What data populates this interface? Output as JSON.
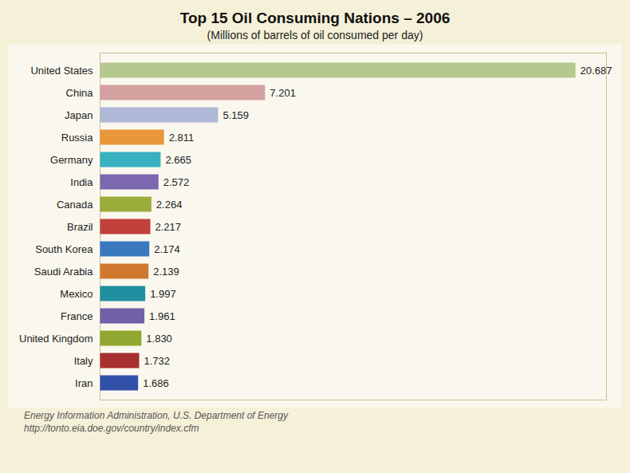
{
  "chart_data": {
    "type": "bar",
    "orientation": "horizontal",
    "title": "Top 15 Oil Consuming Nations – 2006",
    "subtitle": "(Millions of barrels of oil consumed per day)",
    "categories": [
      "United States",
      "China",
      "Japan",
      "Russia",
      "Germany",
      "India",
      "Canada",
      "Brazil",
      "South Korea",
      "Saudi Arabia",
      "Mexico",
      "France",
      "United Kingdom",
      "Italy",
      "Iran"
    ],
    "values": [
      20.687,
      7.201,
      5.159,
      2.811,
      2.665,
      2.572,
      2.264,
      2.217,
      2.174,
      2.139,
      1.997,
      1.961,
      1.83,
      1.732,
      1.686
    ],
    "value_labels": [
      "20.687",
      "7.201",
      "5.159",
      "2.811",
      "2.665",
      "2.572",
      "2.264",
      "2.217",
      "2.174",
      "2.139",
      "1.997",
      "1.961",
      "1.830",
      "1.732",
      "1.686"
    ],
    "colors": [
      "#b5c98e",
      "#d4a0a0",
      "#b0b8d8",
      "#e8973a",
      "#38b0c0",
      "#7b68b0",
      "#9aad3a",
      "#c0413a",
      "#3a78c0",
      "#d07830",
      "#2090a0",
      "#7060a8",
      "#90a830",
      "#a83030",
      "#3050a8"
    ],
    "xlim": [
      0,
      22
    ],
    "data_labels": true,
    "tick_labels": "y",
    "grid": false,
    "annotations": [
      "Energy Information Administration, U.S. Department of Energy",
      "http://tonto.eia.doe.gov/country/index.cfm"
    ]
  }
}
